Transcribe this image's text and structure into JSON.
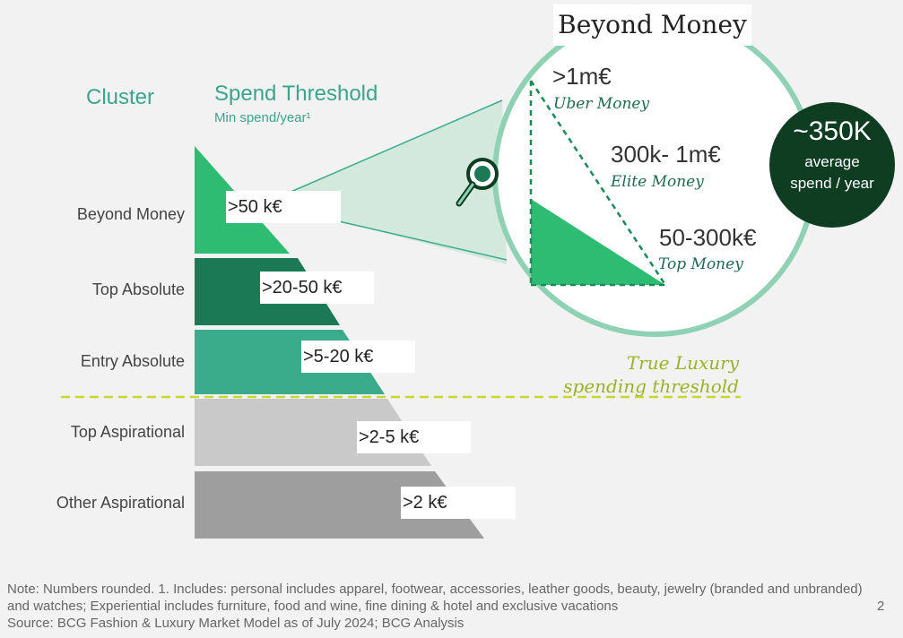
{
  "headers": {
    "cluster": "Cluster",
    "spend_threshold": "Spend Threshold",
    "spend_threshold_sub": "Min spend/year¹"
  },
  "clusters": [
    {
      "label": "Beyond Money",
      "threshold": ">50 k€",
      "color": "#2ebc72"
    },
    {
      "label": "Top Absolute",
      "threshold": ">20-50 k€",
      "color": "#1b7a55"
    },
    {
      "label": "Entry Absolute",
      "threshold": ">5-20 k€",
      "color": "#3aac8c"
    },
    {
      "label": "Top Aspirational",
      "threshold": ">2-5 k€",
      "color": "#c9c9c9"
    },
    {
      "label": "Other Aspirational",
      "threshold": ">2 k€",
      "color": "#9e9e9e"
    }
  ],
  "true_luxury": {
    "line1": "True Luxury",
    "line2": "spending threshold"
  },
  "zoom": {
    "title": "Beyond Money",
    "tiers": [
      {
        "amount": ">1m€",
        "name": "Uber Money"
      },
      {
        "amount": "300k- 1m€",
        "name": "Elite Money"
      },
      {
        "amount": "50-300k€",
        "name": "Top Money"
      }
    ]
  },
  "badge": {
    "value": "~350K",
    "text": "average spend / year"
  },
  "footnote": {
    "line1": "Note: Numbers rounded. 1. Includes: personal includes apparel, footwear, accessories, leather goods, beauty, jewelry (branded and unbranded) and watches; Experiential includes furniture, food and wine, fine dining & hotel and exclusive vacations",
    "line2": "Source: BCG Fashion & Luxury Market Model as of July 2024; BCG Analysis"
  },
  "page_number": "2",
  "colors": {
    "accent": "#3aa58a",
    "dark_green": "#0e3d22",
    "lime": "#c5d82f"
  }
}
